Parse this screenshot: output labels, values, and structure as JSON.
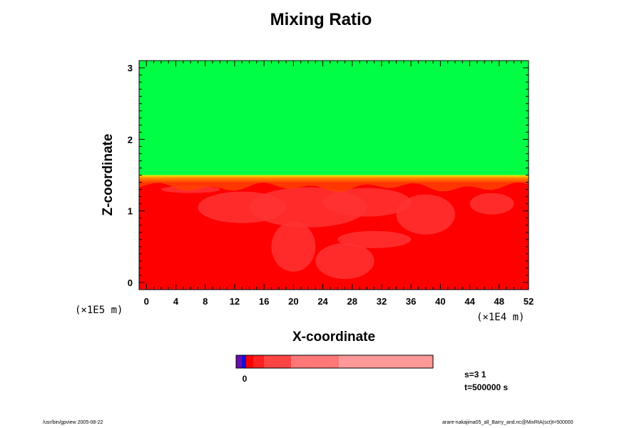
{
  "title": "Mixing Ratio",
  "colors": {
    "upper": "#00ff44",
    "lower": "#ff0000",
    "lower_patch": "#ff3333",
    "band_top": "#ffee00",
    "band_mid": "#ff8800",
    "band_bottom": "#ff4400",
    "colorbar": [
      "#6a0dad",
      "#1010dd",
      "#ff0000",
      "#ff2020",
      "#ff4444",
      "#ff7777",
      "#ff9999"
    ]
  },
  "chart_data": {
    "type": "heatmap",
    "xlabel": "X-coordinate",
    "ylabel": "Z-coordinate",
    "x_scale_label": "(×1E4 m)",
    "y_scale_label": "(×1E5 m)",
    "xlim": [
      -1,
      52
    ],
    "ylim": [
      -0.1,
      3.1
    ],
    "x_ticks": [
      0,
      4,
      8,
      12,
      16,
      20,
      24,
      28,
      32,
      36,
      40,
      44,
      48,
      52
    ],
    "y_ticks": [
      0,
      1,
      2,
      3
    ],
    "regions": [
      {
        "z_min": 1.5,
        "z_max": 3.1,
        "color": "upper"
      },
      {
        "z_min": 1.4,
        "z_max": 1.5,
        "color": "band"
      },
      {
        "z_min": -0.1,
        "z_max": 1.4,
        "color": "lower"
      }
    ],
    "colorbar": {
      "tick_labels": [
        "0"
      ],
      "segments": 7
    },
    "annotations": {
      "s": "s=3 1",
      "t": "t=500000 s"
    }
  },
  "footer": {
    "left": "/usr/bin/gpview 2005-08-22",
    "right": "arare-nakajima05_all_Barry_and.nc@MixRtA(sct)t=500000"
  }
}
